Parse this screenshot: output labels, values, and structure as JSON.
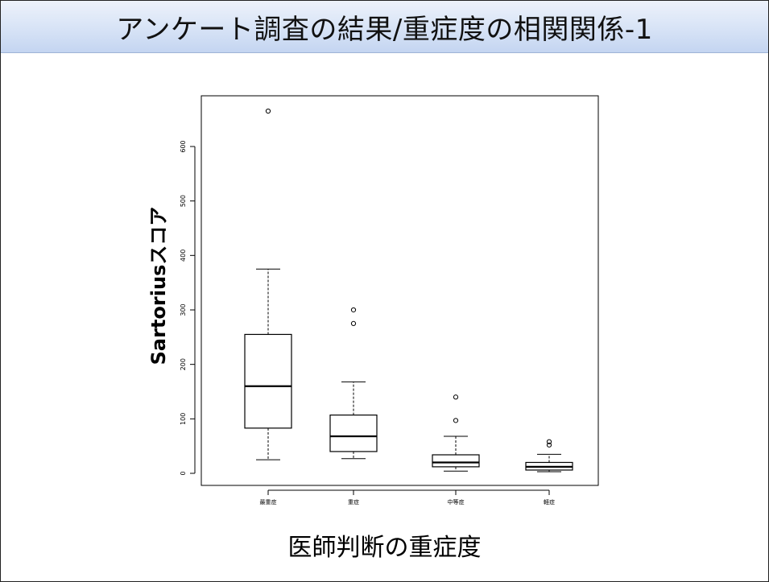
{
  "slide": {
    "title": "アンケート調査の結果/重症度の相関関係-1"
  },
  "chart_data": {
    "type": "boxplot",
    "title": "",
    "xlabel": "医師判断の重症度",
    "ylabel": "Sartoriusスコア",
    "ylim": [
      -25,
      665
    ],
    "yticks": [
      0,
      100,
      200,
      300,
      400,
      500,
      600
    ],
    "categories": [
      "最重症",
      "重症",
      "中等症",
      "軽症"
    ],
    "boxes": [
      {
        "category": "最重症",
        "min": 25,
        "q1": 83,
        "median": 160,
        "q3": 255,
        "max": 375,
        "outliers": [
          665
        ]
      },
      {
        "category": "重症",
        "min": 27,
        "q1": 40,
        "median": 68,
        "q3": 107,
        "max": 168,
        "outliers": [
          275,
          300
        ]
      },
      {
        "category": "中等症",
        "min": 4,
        "q1": 12,
        "median": 20,
        "q3": 34,
        "max": 68,
        "outliers": [
          97,
          140
        ]
      },
      {
        "category": "軽症",
        "min": 3,
        "q1": 6,
        "median": 12,
        "q3": 20,
        "max": 35,
        "outliers": [
          52,
          58
        ]
      }
    ],
    "grid": false,
    "legend": "none"
  }
}
